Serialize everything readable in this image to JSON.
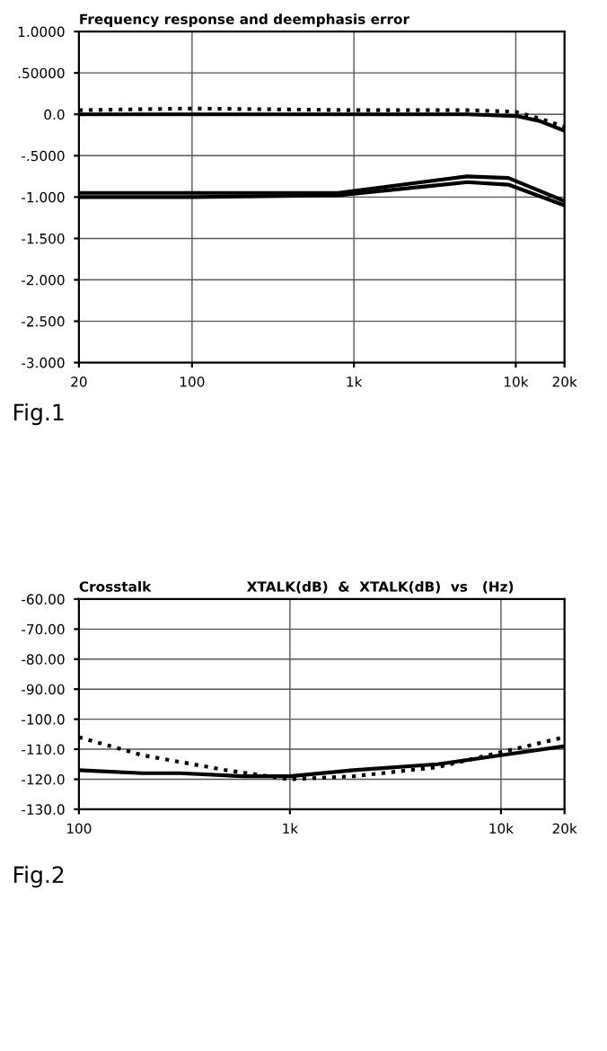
{
  "chart_data": [
    {
      "type": "line",
      "title": "Frequency response and deemphasis error",
      "log": "x",
      "grid": true,
      "xlim": [
        20,
        20000
      ],
      "xticks": [
        20,
        100,
        {
          "value": 1000,
          "label": "1k"
        },
        {
          "value": 10000,
          "label": "10k"
        },
        {
          "value": 20000,
          "label": "20k"
        }
      ],
      "ylim": [
        -3.0,
        1.0
      ],
      "yticks": [
        {
          "value": 1.0,
          "label": "1.0000"
        },
        {
          "value": 0.5,
          "label": ".50000"
        },
        {
          "value": 0,
          "label": "0.0"
        },
        {
          "value": -0.5,
          "label": "-.5000"
        },
        {
          "value": -1.0,
          "label": "-1.000"
        },
        {
          "value": -1.5,
          "label": "-1.500"
        },
        {
          "value": -2.0,
          "label": "-2.000"
        },
        {
          "value": -2.5,
          "label": "-2.500"
        },
        {
          "value": -3.0,
          "label": "-3.000"
        }
      ],
      "annotations": [
        "Fig.1"
      ],
      "series": [
        {
          "color": "#000000",
          "line_style": "dotted",
          "x": [
            20,
            100,
            1000,
            5000,
            10000,
            14000,
            20000
          ],
          "values": [
            0.05,
            0.07,
            0.05,
            0.05,
            0.03,
            -0.05,
            -0.15
          ]
        },
        {
          "color": "#000000",
          "line_style": "solid",
          "x": [
            20,
            100,
            1000,
            5000,
            10000,
            14000,
            20000
          ],
          "values": [
            0.0,
            0.0,
            0.0,
            0.0,
            -0.02,
            -0.08,
            -0.2
          ]
        },
        {
          "color": "#000000",
          "line_style": "solid",
          "x": [
            20,
            100,
            800,
            2000,
            5000,
            9000,
            20000
          ],
          "values": [
            -0.95,
            -0.95,
            -0.95,
            -0.85,
            -0.75,
            -0.77,
            -1.05
          ]
        },
        {
          "color": "#000000",
          "line_style": "solid",
          "x": [
            20,
            100,
            800,
            2000,
            5000,
            9000,
            20000
          ],
          "values": [
            -1.0,
            -1.0,
            -0.98,
            -0.9,
            -0.82,
            -0.85,
            -1.1
          ]
        }
      ]
    },
    {
      "type": "line",
      "title": "Crosstalk                    XTALK(dB)  &  XTALK(dB)  vs   (Hz)",
      "log": "x",
      "grid": true,
      "xlim": [
        100,
        20000
      ],
      "xticks": [
        100,
        {
          "value": 1000,
          "label": "1k"
        },
        {
          "value": 10000,
          "label": "10k"
        },
        {
          "value": 20000,
          "label": "20k"
        }
      ],
      "ylim": [
        -130,
        -60
      ],
      "yticks": [
        {
          "value": -60,
          "label": "-60.00"
        },
        {
          "value": -70,
          "label": "-70.00"
        },
        {
          "value": -80,
          "label": "-80.00"
        },
        {
          "value": -90,
          "label": "-90.00"
        },
        {
          "value": -100,
          "label": "-100.0"
        },
        {
          "value": -110,
          "label": "-110.0"
        },
        {
          "value": -120,
          "label": "-120.0"
        },
        {
          "value": -130,
          "label": "-130.0"
        }
      ],
      "annotations": [
        "Fig.2"
      ],
      "series": [
        {
          "color": "#000000",
          "line_style": "solid",
          "x": [
            100,
            200,
            300,
            600,
            1000,
            2000,
            5000,
            10000,
            20000
          ],
          "values": [
            -117,
            -118,
            -118,
            -119,
            -119,
            -117,
            -115,
            -112,
            -109
          ]
        },
        {
          "color": "#000000",
          "line_style": "dotted",
          "x": [
            100,
            200,
            500,
            1000,
            2000,
            5000,
            10000,
            20000
          ],
          "values": [
            -106,
            -112,
            -117,
            -120,
            -119,
            -116,
            -111,
            -106
          ]
        }
      ]
    }
  ]
}
